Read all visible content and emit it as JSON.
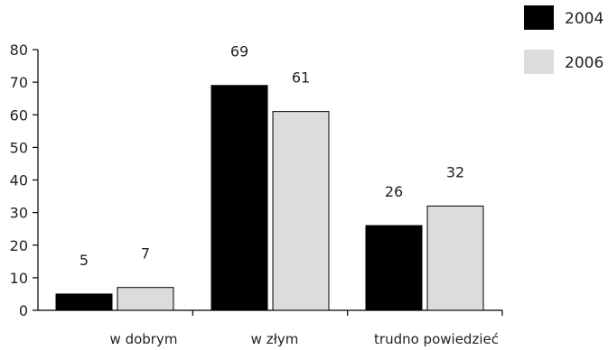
{
  "chart_data": {
    "type": "bar",
    "categories": [
      "w dobrym",
      "w złym",
      "trudno powiedzieć"
    ],
    "series": [
      {
        "name": "2004",
        "values": [
          5,
          69,
          26
        ],
        "color": "#000000"
      },
      {
        "name": "2006",
        "values": [
          7,
          61,
          32
        ],
        "color": "#dcdcdc"
      }
    ],
    "ylim": [
      0,
      80
    ],
    "yticks": [
      0,
      10,
      20,
      30,
      40,
      50,
      60,
      70,
      80
    ],
    "legend": "top-right",
    "grid": false,
    "data_labels": true
  }
}
